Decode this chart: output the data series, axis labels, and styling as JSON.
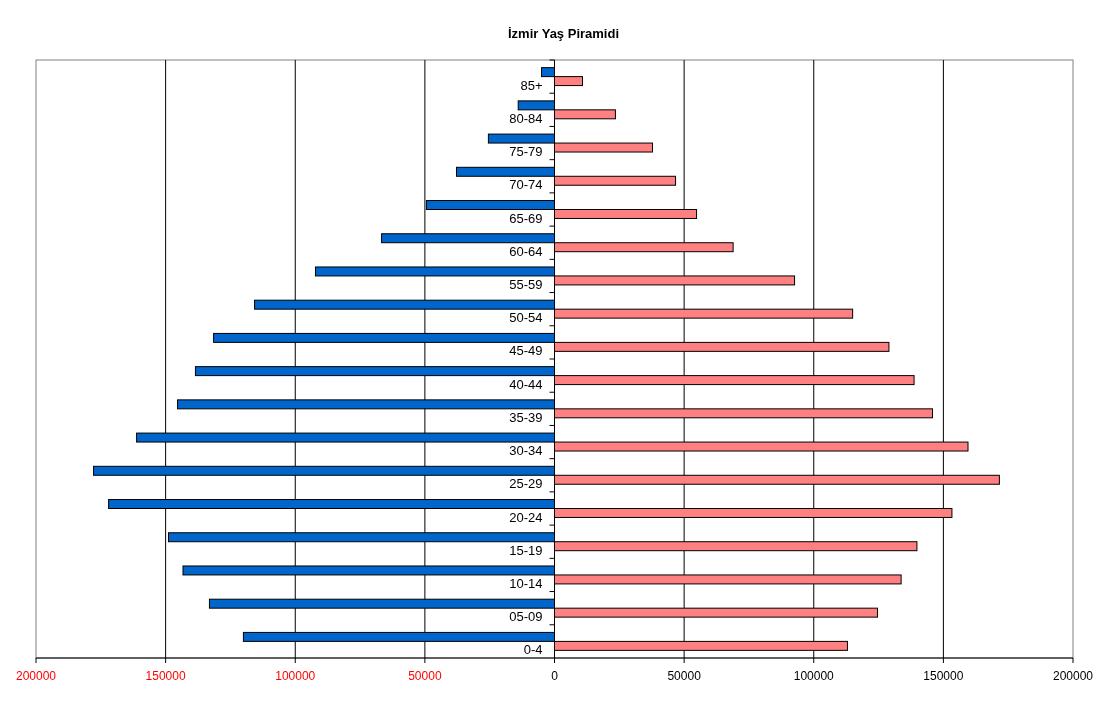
{
  "chart_data": {
    "type": "bar",
    "orientation": "horizontal",
    "title": "İzmir Yaş Piramidi",
    "categories": [
      "85+",
      "80-84",
      "75-79",
      "70-74",
      "65-69",
      "60-64",
      "55-59",
      "50-54",
      "45-49",
      "40-44",
      "35-39",
      "30-34",
      "25-29",
      "20-24",
      "15-19",
      "10-14",
      "05-09",
      "0-4"
    ],
    "series": [
      {
        "color": "#0066cc",
        "values": [
          -5000,
          -14000,
          -25500,
          -37800,
          -49400,
          -66700,
          -92200,
          -115700,
          -131500,
          -138500,
          -145400,
          -161200,
          -177800,
          -172000,
          -148900,
          -143300,
          -133100,
          -120000
        ]
      },
      {
        "color": "#ff8080",
        "values": [
          10800,
          23500,
          37800,
          46700,
          54800,
          68900,
          92600,
          115000,
          129000,
          138700,
          145800,
          159500,
          171600,
          153300,
          139800,
          133700,
          124600,
          113000
        ]
      }
    ],
    "xlim": [
      -200000,
      200000
    ],
    "xticks": [
      {
        "value": -200000,
        "label": "200000"
      },
      {
        "value": -150000,
        "label": "150000"
      },
      {
        "value": -100000,
        "label": "100000"
      },
      {
        "value": -50000,
        "label": "50000"
      },
      0,
      50000,
      100000,
      150000,
      200000
    ],
    "grid": "x"
  }
}
